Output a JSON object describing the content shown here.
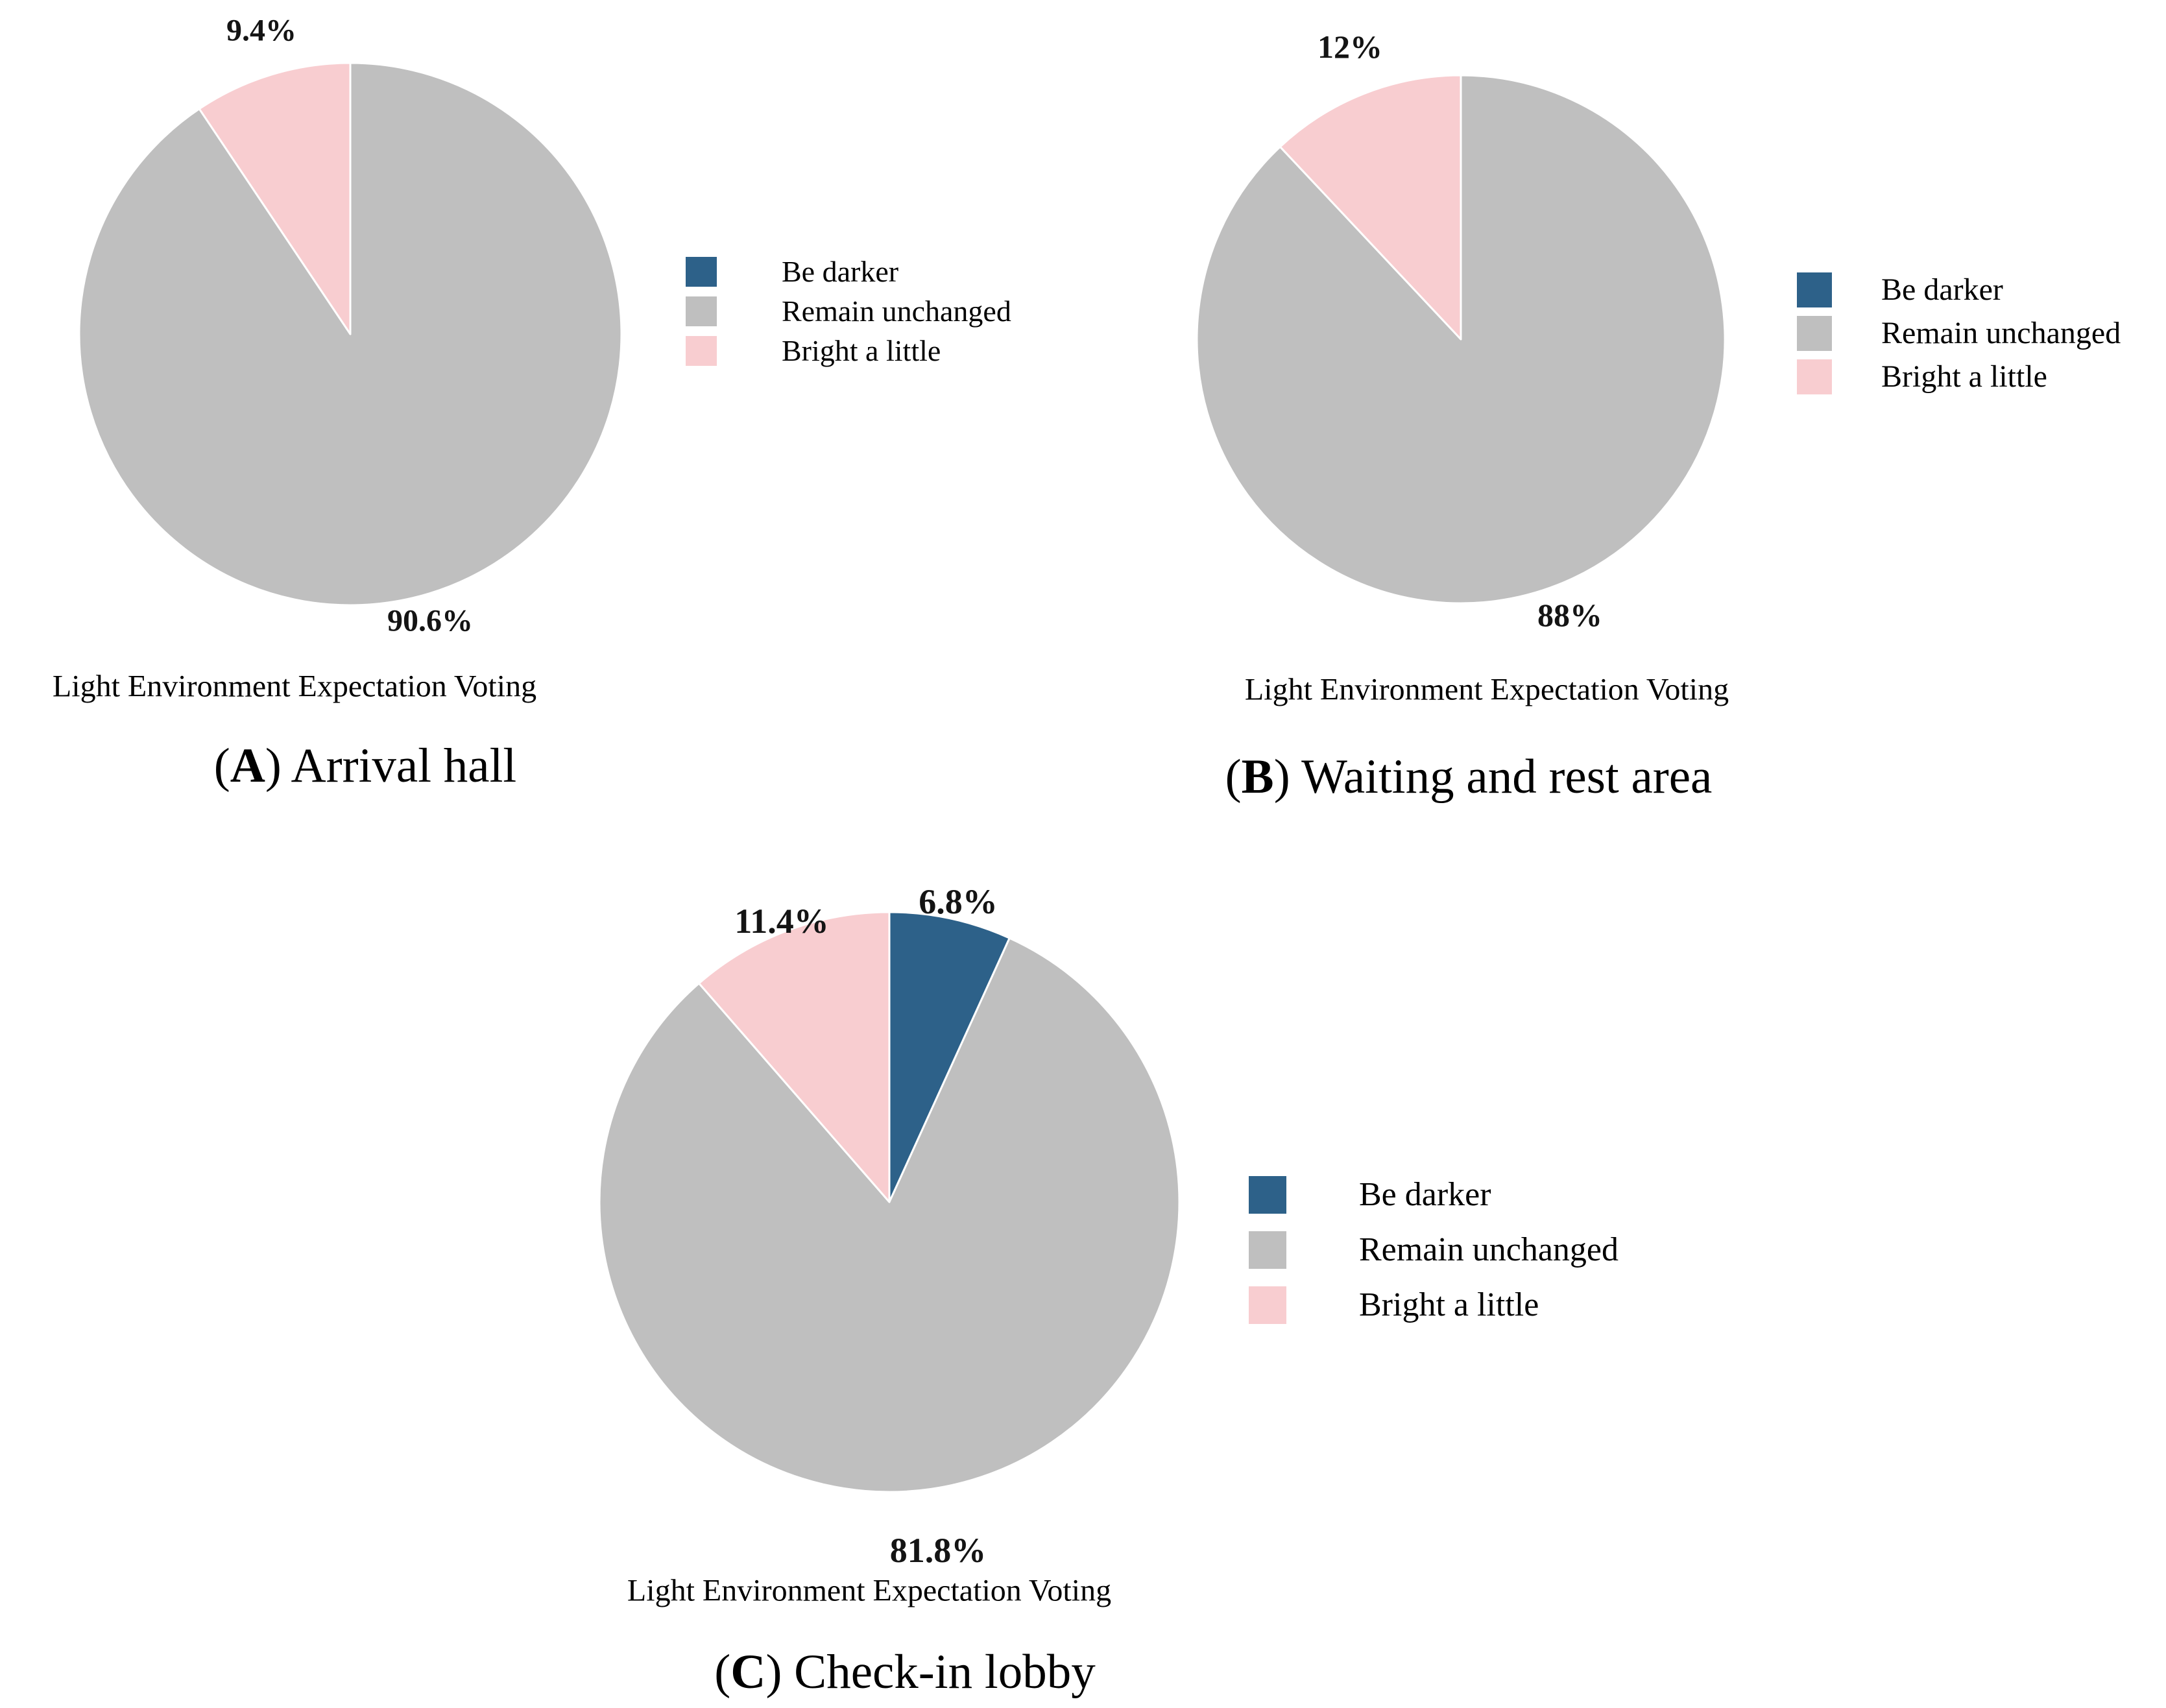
{
  "figure": {
    "background": "#ffffff",
    "colors": {
      "be_darker": "#2d6189",
      "remain_unchanged": "#bfbfbf",
      "bright_a_little": "#f8cdd0"
    },
    "legend_labels": [
      "Be darker",
      "Remain unchanged",
      "Bright a little"
    ]
  },
  "chart_data": [
    {
      "type": "pie",
      "panel": "A",
      "title": "Light Environment Expectation Voting",
      "caption_open": "(",
      "caption_letter": "A",
      "caption_rest": ") Arrival hall",
      "categories": [
        "Be darker",
        "Remain unchanged",
        "Bright a little"
      ],
      "values": [
        0,
        90.6,
        9.4
      ],
      "colors": [
        "#2d6189",
        "#bfbfbf",
        "#f8cdd0"
      ],
      "start_angle": "12 o'clock",
      "direction": "clockwise",
      "legend_position": "right",
      "pct_labels": [
        {
          "text": "9.4%",
          "slice": "Bright a little"
        },
        {
          "text": "90.6%",
          "slice": "Remain unchanged"
        }
      ]
    },
    {
      "type": "pie",
      "panel": "B",
      "title": "Light Environment Expectation Voting",
      "caption_open": "(",
      "caption_letter": "B",
      "caption_rest": ") Waiting and rest area",
      "categories": [
        "Be darker",
        "Remain unchanged",
        "Bright a little"
      ],
      "values": [
        0,
        88,
        12
      ],
      "colors": [
        "#2d6189",
        "#bfbfbf",
        "#f8cdd0"
      ],
      "start_angle": "12 o'clock",
      "direction": "clockwise",
      "legend_position": "right",
      "pct_labels": [
        {
          "text": "12%",
          "slice": "Bright a little"
        },
        {
          "text": "88%",
          "slice": "Remain unchanged"
        }
      ]
    },
    {
      "type": "pie",
      "panel": "C",
      "title": "Light Environment Expectation Voting",
      "caption_open": "(",
      "caption_letter": "C",
      "caption_rest": ") Check-in lobby",
      "categories": [
        "Be darker",
        "Remain unchanged",
        "Bright a little"
      ],
      "values": [
        6.8,
        81.8,
        11.4
      ],
      "colors": [
        "#2d6189",
        "#bfbfbf",
        "#f8cdd0"
      ],
      "start_angle": "12 o'clock",
      "direction": "clockwise",
      "legend_position": "right",
      "pct_labels": [
        {
          "text": "6.8%",
          "slice": "Be darker"
        },
        {
          "text": "11.4%",
          "slice": "Bright a little"
        },
        {
          "text": "81.8%",
          "slice": "Remain unchanged"
        }
      ]
    }
  ]
}
